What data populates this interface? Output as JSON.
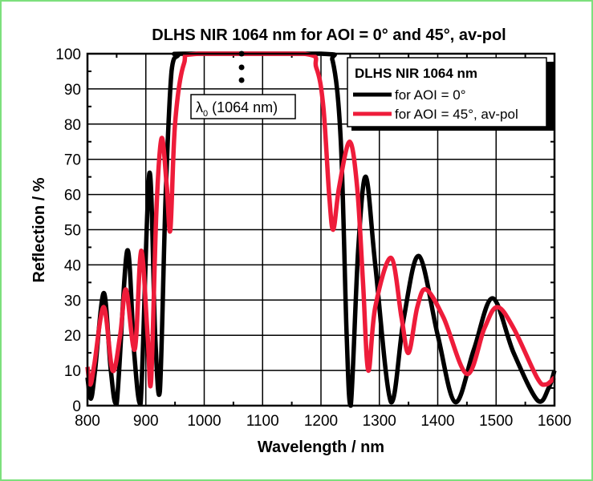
{
  "chart_data": {
    "type": "line",
    "title": "DLHS NIR 1064 nm for AOI = 0° and 45°, av-pol",
    "xlabel": "Wavelength / nm",
    "ylabel": "Reflection / %",
    "xlim": [
      800,
      1600
    ],
    "ylim": [
      0,
      100
    ],
    "xticks": [
      800,
      900,
      1000,
      1100,
      1200,
      1300,
      1400,
      1500,
      1600
    ],
    "yticks": [
      0,
      10,
      20,
      30,
      40,
      50,
      60,
      70,
      80,
      90,
      100
    ],
    "grid": true,
    "legend": {
      "title": "DLHS NIR 1064 nm",
      "placement": "top-right"
    },
    "annotation": {
      "symbol": "λ",
      "subscript": "0",
      "text": " (1064 nm)",
      "x": 1064
    },
    "series": [
      {
        "name": "for AOI = 0°",
        "color": "#000000",
        "points": [
          [
            800,
            8
          ],
          [
            806,
            2
          ],
          [
            813,
            10
          ],
          [
            828,
            32
          ],
          [
            840,
            10
          ],
          [
            850,
            0.5
          ],
          [
            868,
            44
          ],
          [
            880,
            15
          ],
          [
            891,
            0.5
          ],
          [
            906,
            66
          ],
          [
            916,
            20
          ],
          [
            924,
            4
          ],
          [
            934,
            60
          ],
          [
            944,
            95
          ],
          [
            955,
            99.5
          ],
          [
            970,
            100
          ],
          [
            1200,
            100
          ],
          [
            1220,
            98
          ],
          [
            1234,
            75
          ],
          [
            1244,
            20
          ],
          [
            1251,
            0
          ],
          [
            1264,
            45
          ],
          [
            1277,
            65
          ],
          [
            1293,
            40
          ],
          [
            1320,
            1
          ],
          [
            1342,
            25
          ],
          [
            1368,
            42.5
          ],
          [
            1400,
            20
          ],
          [
            1430,
            1
          ],
          [
            1462,
            16
          ],
          [
            1494,
            30.5
          ],
          [
            1530,
            15
          ],
          [
            1571,
            1.5
          ],
          [
            1590,
            5
          ],
          [
            1600,
            10
          ]
        ]
      },
      {
        "name": "for AOI = 45°, av-pol",
        "color": "#ee1c3a",
        "points": [
          [
            800,
            11
          ],
          [
            805,
            6
          ],
          [
            812,
            12
          ],
          [
            828,
            28
          ],
          [
            843,
            10
          ],
          [
            856,
            20
          ],
          [
            866,
            33
          ],
          [
            881,
            16
          ],
          [
            892,
            44
          ],
          [
            903,
            20
          ],
          [
            909,
            7
          ],
          [
            918,
            55
          ],
          [
            927,
            76
          ],
          [
            936,
            62
          ],
          [
            942,
            50
          ],
          [
            950,
            80
          ],
          [
            965,
            97
          ],
          [
            990,
            100
          ],
          [
            1170,
            100
          ],
          [
            1192,
            96
          ],
          [
            1204,
            85
          ],
          [
            1214,
            60
          ],
          [
            1221,
            50
          ],
          [
            1231,
            62
          ],
          [
            1249,
            75
          ],
          [
            1262,
            62
          ],
          [
            1272,
            35
          ],
          [
            1281,
            10
          ],
          [
            1293,
            28
          ],
          [
            1320,
            42
          ],
          [
            1338,
            25
          ],
          [
            1350,
            15
          ],
          [
            1365,
            28
          ],
          [
            1380,
            33
          ],
          [
            1410,
            25
          ],
          [
            1450,
            9
          ],
          [
            1480,
            22
          ],
          [
            1502,
            28
          ],
          [
            1530,
            22
          ],
          [
            1570,
            8
          ],
          [
            1585,
            6
          ],
          [
            1600,
            8
          ]
        ]
      }
    ]
  }
}
